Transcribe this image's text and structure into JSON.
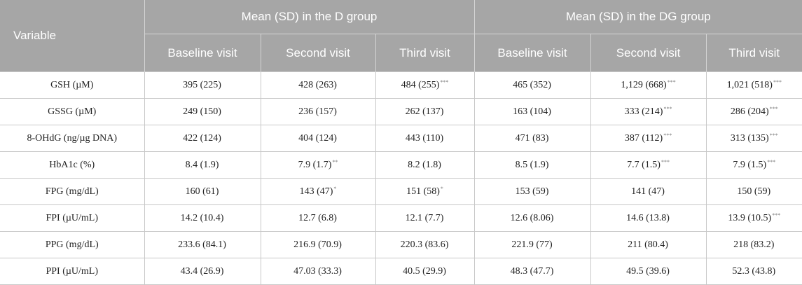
{
  "header": {
    "variable": "Variable",
    "group_d": "Mean (SD) in the D group",
    "group_dg": "Mean (SD) in the DG group",
    "visits": [
      "Baseline visit",
      "Second visit",
      "Third visit",
      "Baseline visit",
      "Second visit",
      "Third visit"
    ]
  },
  "rows": [
    {
      "label": "GSH (µM)",
      "cells": [
        {
          "v": "395 (225)",
          "s": ""
        },
        {
          "v": "428 (263)",
          "s": ""
        },
        {
          "v": "484 (255)",
          "s": "***"
        },
        {
          "v": "465 (352)",
          "s": ""
        },
        {
          "v": "1,129 (668)",
          "s": "***"
        },
        {
          "v": "1,021 (518)",
          "s": "***"
        }
      ]
    },
    {
      "label": "GSSG (µM)",
      "cells": [
        {
          "v": "249 (150)",
          "s": ""
        },
        {
          "v": "236 (157)",
          "s": ""
        },
        {
          "v": "262 (137)",
          "s": ""
        },
        {
          "v": "163 (104)",
          "s": ""
        },
        {
          "v": "333 (214)",
          "s": "***"
        },
        {
          "v": "286 (204)",
          "s": "***"
        }
      ]
    },
    {
      "label": "8-OHdG (ng/µg DNA)",
      "cells": [
        {
          "v": "422 (124)",
          "s": ""
        },
        {
          "v": "404 (124)",
          "s": ""
        },
        {
          "v": "443 (110)",
          "s": ""
        },
        {
          "v": "471 (83)",
          "s": ""
        },
        {
          "v": "387 (112)",
          "s": "***"
        },
        {
          "v": "313 (135)",
          "s": "***"
        }
      ]
    },
    {
      "label": "HbA1c (%)",
      "cells": [
        {
          "v": "8.4 (1.9)",
          "s": ""
        },
        {
          "v": "7.9 (1.7)",
          "s": "**"
        },
        {
          "v": "8.2 (1.8)",
          "s": ""
        },
        {
          "v": "8.5 (1.9)",
          "s": ""
        },
        {
          "v": "7.7 (1.5)",
          "s": "***"
        },
        {
          "v": "7.9 (1.5)",
          "s": "***"
        }
      ]
    },
    {
      "label": "FPG (mg/dL)",
      "cells": [
        {
          "v": "160 (61)",
          "s": ""
        },
        {
          "v": "143 (47)",
          "s": "*"
        },
        {
          "v": "151 (58)",
          "s": "*"
        },
        {
          "v": "153 (59)",
          "s": ""
        },
        {
          "v": "141 (47)",
          "s": ""
        },
        {
          "v": "150 (59)",
          "s": ""
        }
      ]
    },
    {
      "label": "FPI (µU/mL)",
      "cells": [
        {
          "v": "14.2 (10.4)",
          "s": ""
        },
        {
          "v": "12.7 (6.8)",
          "s": ""
        },
        {
          "v": "12.1 (7.7)",
          "s": ""
        },
        {
          "v": "12.6 (8.06)",
          "s": ""
        },
        {
          "v": "14.6 (13.8)",
          "s": ""
        },
        {
          "v": "13.9 (10.5)",
          "s": "***"
        }
      ]
    },
    {
      "label": "PPG (mg/dL)",
      "cells": [
        {
          "v": "233.6 (84.1)",
          "s": ""
        },
        {
          "v": "216.9 (70.9)",
          "s": ""
        },
        {
          "v": "220.3 (83.6)",
          "s": ""
        },
        {
          "v": "221.9 (77)",
          "s": ""
        },
        {
          "v": "211 (80.4)",
          "s": ""
        },
        {
          "v": "218 (83.2)",
          "s": ""
        }
      ]
    },
    {
      "label": "PPI (µU/mL)",
      "cells": [
        {
          "v": "43.4 (26.9)",
          "s": ""
        },
        {
          "v": "47.03 (33.3)",
          "s": ""
        },
        {
          "v": "40.5 (29.9)",
          "s": ""
        },
        {
          "v": "48.3 (47.7)",
          "s": ""
        },
        {
          "v": "49.5 (39.6)",
          "s": ""
        },
        {
          "v": "52.3 (43.8)",
          "s": ""
        }
      ]
    }
  ]
}
